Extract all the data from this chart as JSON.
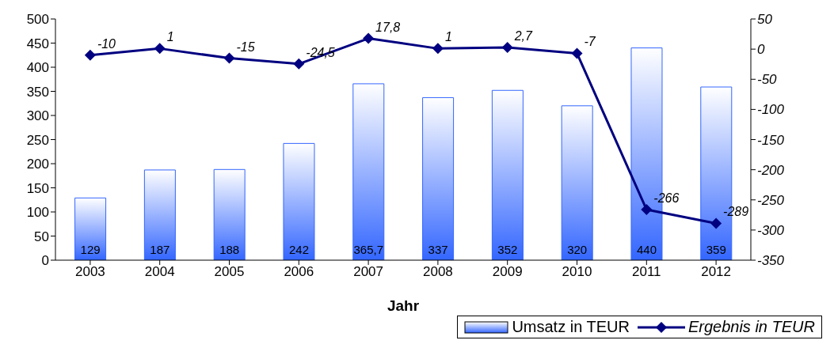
{
  "chart_data": {
    "type": "bar",
    "categories": [
      "2003",
      "2004",
      "2005",
      "2006",
      "2007",
      "2008",
      "2009",
      "2010",
      "2011",
      "2012"
    ],
    "xlabel": "Jahr",
    "series": [
      {
        "name": "Umsatz in TEUR",
        "color": "#3366ff",
        "values": [
          129,
          187,
          188,
          242,
          365.7,
          337,
          352,
          320,
          440,
          359
        ],
        "value_labels": [
          "129",
          "187",
          "188",
          "242",
          "365,7",
          "337",
          "352",
          "320",
          "440",
          "359"
        ]
      },
      {
        "name": "Ergebnis in TEUR",
        "type": "line",
        "axis": "y2",
        "color": "#000080",
        "marker": "diamond",
        "values": [
          -10,
          1,
          -15,
          -24.5,
          17.8,
          1,
          2.7,
          -7,
          -266,
          -289
        ],
        "value_labels": [
          "-10",
          "1",
          "-15",
          "-24,5",
          "17,8",
          "1",
          "2,7",
          "-7",
          "-266",
          "-289"
        ]
      }
    ],
    "ylim": [
      0,
      500
    ],
    "yticks": [
      0,
      50,
      100,
      150,
      200,
      250,
      300,
      350,
      400,
      450,
      500
    ],
    "y2lim": [
      -350,
      50
    ],
    "y2ticks": [
      -350,
      -300,
      -250,
      -200,
      -150,
      -100,
      -50,
      0,
      50
    ],
    "grid": false,
    "legend": "bottom right"
  }
}
